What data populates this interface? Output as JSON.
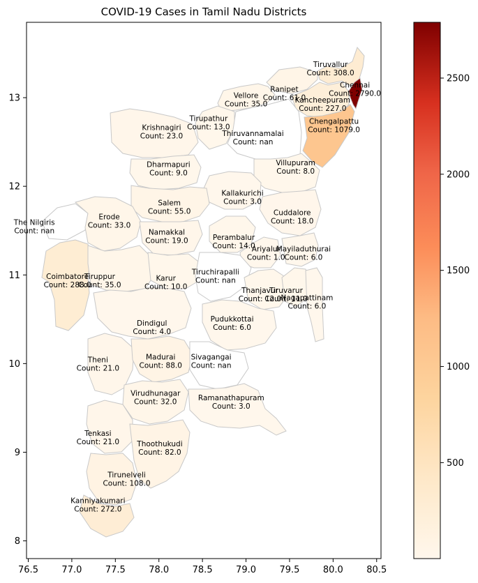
{
  "title": "COVID-19 Cases in Tamil Nadu Districts",
  "map": {
    "xlim": [
      76.48,
      80.55
    ],
    "ylim": [
      7.8,
      13.85
    ],
    "x_ticks": [
      "76.5",
      "77.0",
      "77.5",
      "78.0",
      "78.5",
      "79.0",
      "79.5",
      "80.0",
      "80.5"
    ],
    "x_tick_values": [
      76.5,
      77.0,
      77.5,
      78.0,
      78.5,
      79.0,
      79.5,
      80.0,
      80.5
    ],
    "y_ticks": [
      "8",
      "9",
      "10",
      "11",
      "12",
      "13"
    ],
    "y_tick_values": [
      8,
      9,
      10,
      11,
      12,
      13
    ],
    "border_color": "#c8c8c8",
    "missing_color": "#ffffff"
  },
  "colorbar": {
    "colormap": "OrRd",
    "min": 1,
    "max": 2790,
    "ticks": [
      "500",
      "1000",
      "1500",
      "2000",
      "2500"
    ],
    "tick_values": [
      500,
      1000,
      1500,
      2000,
      2500
    ]
  },
  "districts": [
    {
      "name": "Tiruvallur",
      "label": "Tiruvallur",
      "count_text": "Count: 308.0",
      "count": 308,
      "lon": 79.97,
      "lat": 13.33
    },
    {
      "name": "Chennai",
      "label": "Chennai",
      "count_text": "Count: 2790.0",
      "count": 2790,
      "lon": 80.25,
      "lat": 13.1
    },
    {
      "name": "Ranipet",
      "label": "Ranipet",
      "count_text": "Count: 61.0",
      "count": 61,
      "lon": 79.44,
      "lat": 13.05
    },
    {
      "name": "Vellore",
      "label": "Vellore",
      "count_text": "Count: 35.0",
      "count": 35,
      "lon": 79.0,
      "lat": 12.98
    },
    {
      "name": "Kancheepuram",
      "label": "Kancheepuram",
      "count_text": "Count: 227.0",
      "count": 227,
      "lon": 79.88,
      "lat": 12.93
    },
    {
      "name": "Tirupathur",
      "label": "Tirupathur",
      "count_text": "Count: 13.0",
      "count": 13,
      "lon": 78.57,
      "lat": 12.72
    },
    {
      "name": "Chengalpattu",
      "label": "Chengalpattu",
      "count_text": "Count: 1079.0",
      "count": 1079,
      "lon": 80.01,
      "lat": 12.69
    },
    {
      "name": "Krishnagiri",
      "label": "Krishnagiri",
      "count_text": "Count: 23.0",
      "count": 23,
      "lon": 78.03,
      "lat": 12.62
    },
    {
      "name": "Thiruvannamalai",
      "label": "Thiruvannamalai",
      "count_text": "Count: nan",
      "count": null,
      "lon": 79.08,
      "lat": 12.55
    },
    {
      "name": "Dharmapuri",
      "label": "Dharmapuri",
      "count_text": "Count: 9.0",
      "count": 9,
      "lon": 78.11,
      "lat": 12.2
    },
    {
      "name": "Villupuram",
      "label": "Villupuram",
      "count_text": "Count: 8.0",
      "count": 8,
      "lon": 79.57,
      "lat": 12.22
    },
    {
      "name": "Kallakurichi",
      "label": "Kallakurichi",
      "count_text": "Count: 3.0",
      "count": 3,
      "lon": 78.96,
      "lat": 11.88
    },
    {
      "name": "Salem",
      "label": "Salem",
      "count_text": "Count: 55.0",
      "count": 55,
      "lon": 78.12,
      "lat": 11.77
    },
    {
      "name": "The Nilgiris",
      "label": "The Nilgiris",
      "count_text": "Count: nan",
      "count": null,
      "lon": 76.57,
      "lat": 11.55
    },
    {
      "name": "Erode",
      "label": "Erode",
      "count_text": "Count: 33.0",
      "count": 33,
      "lon": 77.43,
      "lat": 11.61
    },
    {
      "name": "Cuddalore",
      "label": "Cuddalore",
      "count_text": "Count: 18.0",
      "count": 18,
      "lon": 79.53,
      "lat": 11.66
    },
    {
      "name": "Namakkal",
      "label": "Namakkal",
      "count_text": "Count: 19.0",
      "count": 19,
      "lon": 78.09,
      "lat": 11.44
    },
    {
      "name": "Perambalur",
      "label": "Perambalur",
      "count_text": "Count: 14.0",
      "count": 14,
      "lon": 78.86,
      "lat": 11.38
    },
    {
      "name": "Ariyalur",
      "label": "Ariyalur",
      "count_text": "Count: 1.0",
      "count": 1,
      "lon": 79.23,
      "lat": 11.25
    },
    {
      "name": "Mayiladuthurai",
      "label": "Mayiladuthurai",
      "count_text": "Count: 6.0",
      "count": 6,
      "lon": 79.66,
      "lat": 11.25
    },
    {
      "name": "Coimbatore",
      "label": "Coimbatore",
      "count_text": "Count: 288.0",
      "count": 288,
      "lon": 76.95,
      "lat": 10.94
    },
    {
      "name": "Tiruppur",
      "label": "Tiruppur",
      "count_text": "Count: 35.0",
      "count": 35,
      "lon": 77.32,
      "lat": 10.94
    },
    {
      "name": "Karur",
      "label": "Karur",
      "count_text": "Count: 10.0",
      "count": 10,
      "lon": 78.08,
      "lat": 10.92
    },
    {
      "name": "Tiruchirapalli",
      "label": "Tiruchirapalli",
      "count_text": "Count: nan",
      "count": null,
      "lon": 78.65,
      "lat": 10.99
    },
    {
      "name": "Thanjavur",
      "label": "Thanjavur",
      "count_text": "Count: 12.0",
      "count": 12,
      "lon": 79.16,
      "lat": 10.78
    },
    {
      "name": "Tiruvarur",
      "label": "Tiruvarur",
      "count_text": "Count: 11.0",
      "count": 11,
      "lon": 79.46,
      "lat": 10.78
    },
    {
      "name": "Nagapattinam",
      "label": "Nagapattinam",
      "count_text": "Count: 6.0",
      "count": 6,
      "lon": 79.7,
      "lat": 10.7
    },
    {
      "name": "Dindigul",
      "label": "Dindigul",
      "count_text": "Count: 4.0",
      "count": 4,
      "lon": 77.92,
      "lat": 10.41
    },
    {
      "name": "Pudukkottai",
      "label": "Pudukkottai",
      "count_text": "Count: 6.0",
      "count": 6,
      "lon": 78.84,
      "lat": 10.46
    },
    {
      "name": "Theni",
      "label": "Theni",
      "count_text": "Count: 21.0",
      "count": 21,
      "lon": 77.3,
      "lat": 10.0
    },
    {
      "name": "Madurai",
      "label": "Madurai",
      "count_text": "Count: 88.0",
      "count": 88,
      "lon": 78.02,
      "lat": 10.03
    },
    {
      "name": "Sivagangai",
      "label": "Sivagangai",
      "count_text": "Count: nan",
      "count": null,
      "lon": 78.6,
      "lat": 10.03
    },
    {
      "name": "Virudhunagar",
      "label": "Virudhunagar",
      "count_text": "Count: 32.0",
      "count": 32,
      "lon": 77.96,
      "lat": 9.62
    },
    {
      "name": "Ramanathapuram",
      "label": "Ramanathapuram",
      "count_text": "Count: 3.0",
      "count": 3,
      "lon": 78.83,
      "lat": 9.57
    },
    {
      "name": "Tenkasi",
      "label": "Tenkasi",
      "count_text": "Count: 21.0",
      "count": 21,
      "lon": 77.3,
      "lat": 9.17
    },
    {
      "name": "Thoothukudi",
      "label": "Thoothukudi",
      "count_text": "Count: 82.0",
      "count": 82,
      "lon": 78.01,
      "lat": 9.05
    },
    {
      "name": "Tirunelveli",
      "label": "Tirunelveli",
      "count_text": "Count: 108.0",
      "count": 108,
      "lon": 77.63,
      "lat": 8.7
    },
    {
      "name": "Kanniyakumari",
      "label": "Kanniyakumari",
      "count_text": "Count: 272.0",
      "count": 272,
      "lon": 77.3,
      "lat": 8.41
    }
  ]
}
